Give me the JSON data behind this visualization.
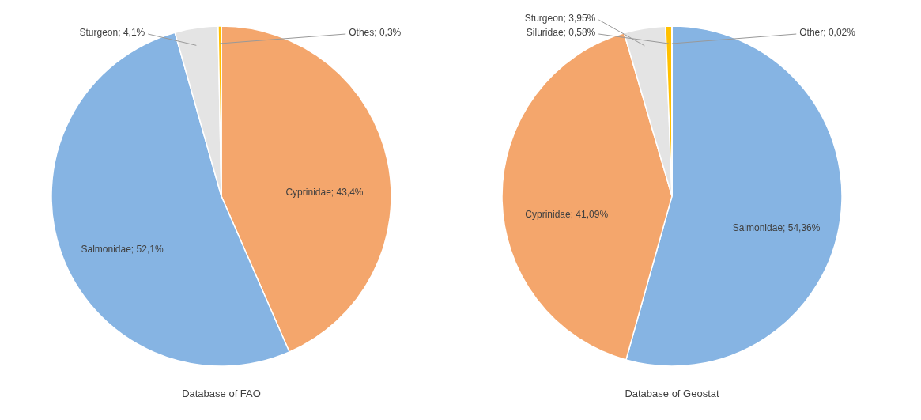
{
  "chart_data": [
    {
      "type": "pie",
      "title": "Database of FAO",
      "categories": [
        "Cyprinidae",
        "Salmonidae",
        "Sturgeon",
        "Othes"
      ],
      "values": [
        43.4,
        52.1,
        4.1,
        0.3
      ],
      "colors": [
        "#f4a66c",
        "#86b4e3",
        "#e4e4e4",
        "#ffc000"
      ],
      "value_labels": [
        "43,4%",
        "52,1%",
        "4,1%",
        "0,3%"
      ]
    },
    {
      "type": "pie",
      "title": "Database of Geostat",
      "categories": [
        "Salmonidae",
        "Cyprinidae",
        "Sturgeon",
        "Siluridae",
        "Other"
      ],
      "values": [
        54.36,
        41.09,
        3.95,
        0.58,
        0.02
      ],
      "colors": [
        "#86b4e3",
        "#f4a66c",
        "#e4e4e4",
        "#ffc000",
        "#a9d18e"
      ],
      "value_labels": [
        "54,36%",
        "41,09%",
        "3,95%",
        "0,58%",
        "0,02%"
      ]
    }
  ]
}
